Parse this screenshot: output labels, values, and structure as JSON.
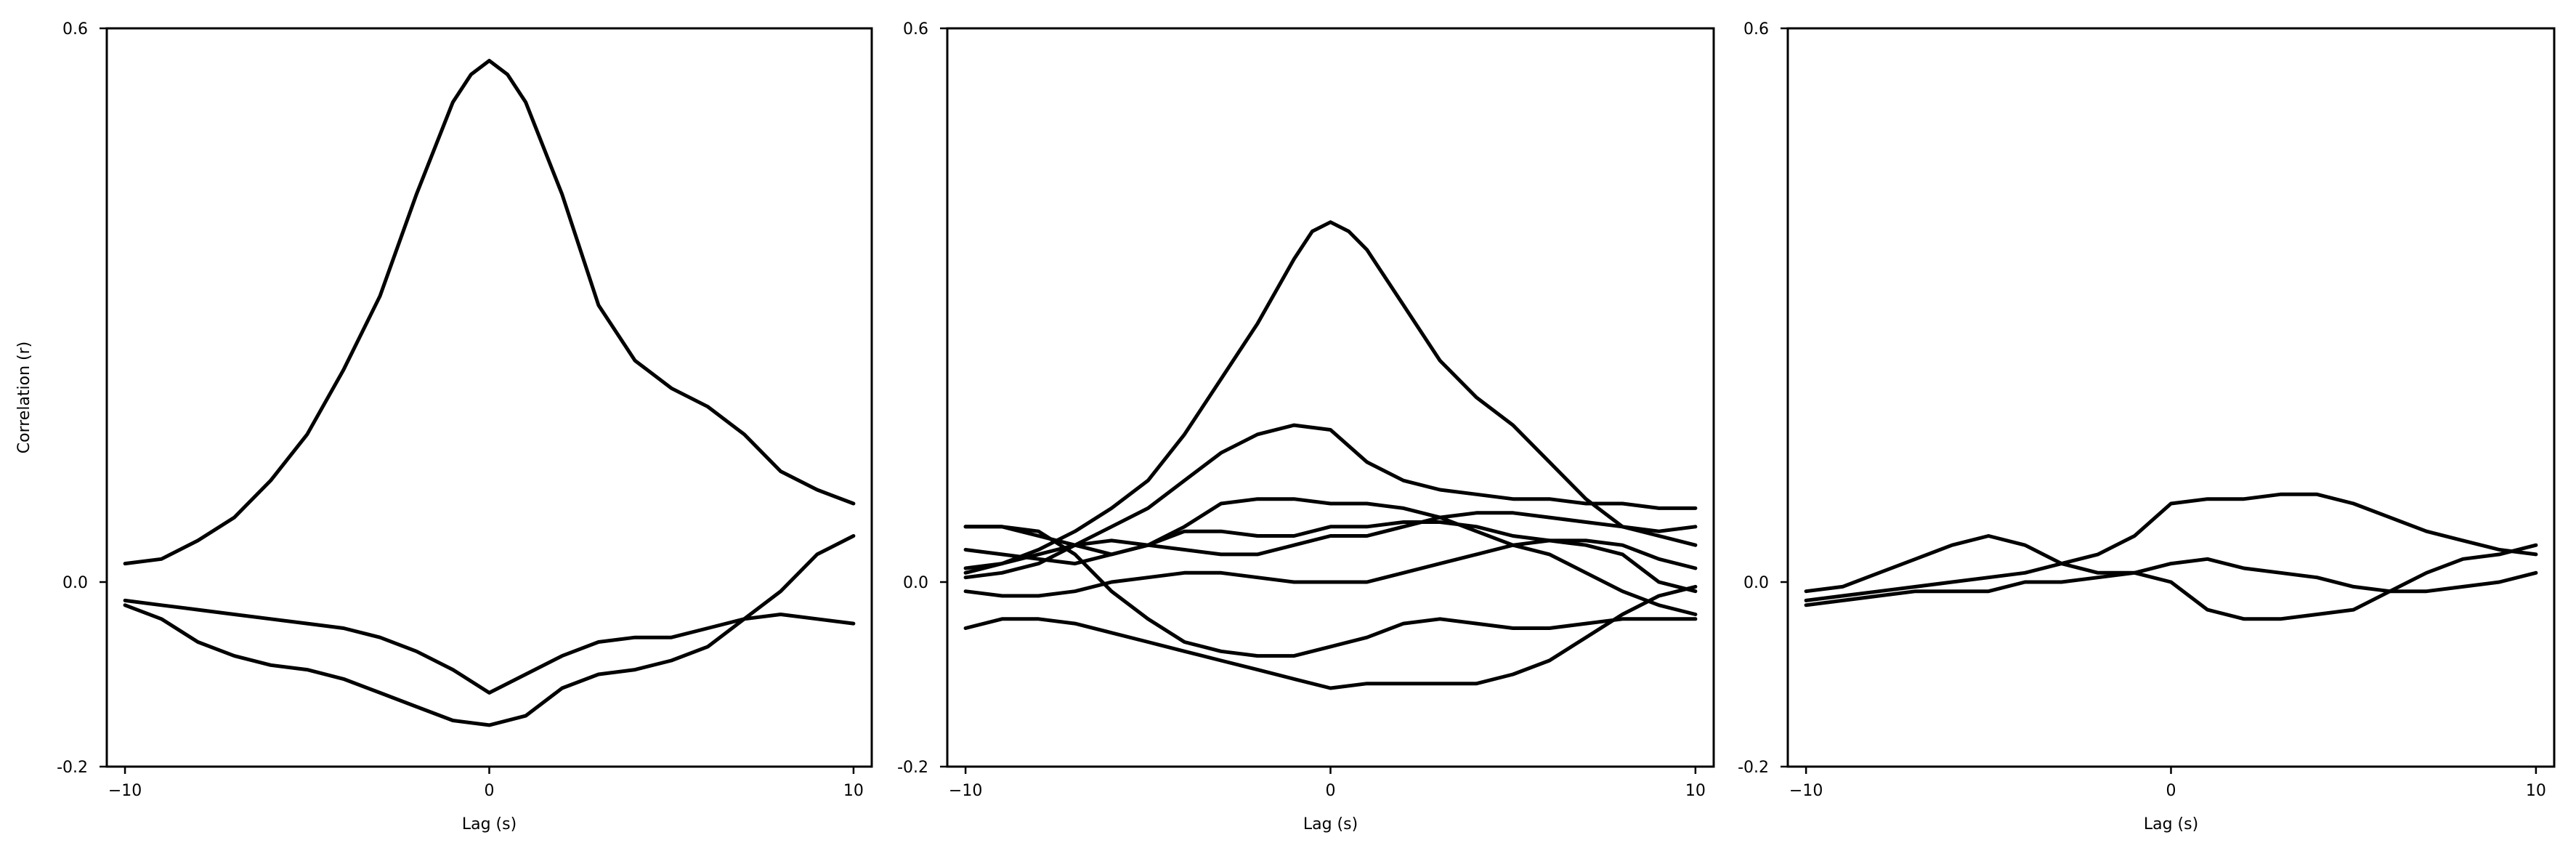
{
  "figure": {
    "line_color": "#000000",
    "background": "#ffffff"
  },
  "chart_data": [
    {
      "type": "line",
      "title": "",
      "xlabel": "Lag (s)",
      "ylabel": "Correlation (r)",
      "xlim": [
        -10.5,
        10.5
      ],
      "ylim": [
        -0.2,
        0.6
      ],
      "xticks": [
        -10,
        0,
        10
      ],
      "yticks": [
        -0.2,
        0.0,
        0.6
      ],
      "ytick_labels": [
        "-0.2",
        "0.0",
        "0.6"
      ],
      "grid": false,
      "series": [
        {
          "x": [
            -10,
            -9,
            -8,
            -7,
            -6,
            -5,
            -4,
            -3,
            -2,
            -1,
            -0.5,
            0,
            0.5,
            1,
            2,
            3,
            4,
            5,
            6,
            7,
            8,
            9,
            10
          ],
          "y": [
            0.02,
            0.025,
            0.045,
            0.07,
            0.11,
            0.16,
            0.23,
            0.31,
            0.42,
            0.52,
            0.55,
            0.565,
            0.55,
            0.52,
            0.42,
            0.3,
            0.24,
            0.21,
            0.19,
            0.16,
            0.12,
            0.1,
            0.085
          ]
        },
        {
          "x": [
            -10,
            -9,
            -8,
            -7,
            -6,
            -5,
            -4,
            -3,
            -2,
            -1,
            0,
            1,
            2,
            3,
            4,
            5,
            6,
            7,
            8,
            9,
            10
          ],
          "y": [
            -0.02,
            -0.025,
            -0.03,
            -0.035,
            -0.04,
            -0.045,
            -0.05,
            -0.06,
            -0.075,
            -0.095,
            -0.12,
            -0.1,
            -0.08,
            -0.065,
            -0.06,
            -0.06,
            -0.05,
            -0.04,
            -0.035,
            -0.04,
            -0.045
          ]
        },
        {
          "x": [
            -10,
            -9,
            -8,
            -7,
            -6,
            -5,
            -4,
            -3,
            -2,
            -1,
            0,
            1,
            2,
            3,
            4,
            5,
            6,
            7,
            8,
            9,
            10
          ],
          "y": [
            -0.025,
            -0.04,
            -0.065,
            -0.08,
            -0.09,
            -0.095,
            -0.105,
            -0.12,
            -0.135,
            -0.15,
            -0.155,
            -0.145,
            -0.115,
            -0.1,
            -0.095,
            -0.085,
            -0.07,
            -0.04,
            -0.01,
            0.03,
            0.05
          ]
        }
      ]
    },
    {
      "type": "line",
      "title": "",
      "xlabel": "Lag (s)",
      "ylabel": "",
      "xlim": [
        -10.5,
        10.5
      ],
      "ylim": [
        -0.2,
        0.6
      ],
      "xticks": [
        -10,
        0,
        10
      ],
      "yticks": [
        -0.2,
        0.0,
        0.6
      ],
      "ytick_labels": [
        "-0.2",
        "0.0",
        "0.6"
      ],
      "grid": false,
      "series": [
        {
          "x": [
            -10,
            -9,
            -8,
            -7,
            -6,
            -5,
            -4,
            -3,
            -2,
            -1,
            -0.5,
            0,
            0.5,
            1,
            2,
            3,
            4,
            5,
            6,
            7,
            8,
            9,
            10
          ],
          "y": [
            0.01,
            0.02,
            0.035,
            0.055,
            0.08,
            0.11,
            0.16,
            0.22,
            0.28,
            0.35,
            0.38,
            0.39,
            0.38,
            0.36,
            0.3,
            0.24,
            0.2,
            0.17,
            0.13,
            0.09,
            0.06,
            0.05,
            0.04
          ]
        },
        {
          "x": [
            -10,
            -9,
            -8,
            -7,
            -6,
            -5,
            -4,
            -3,
            -2,
            -1,
            0,
            1,
            2,
            3,
            4,
            5,
            6,
            7,
            8,
            9,
            10
          ],
          "y": [
            0.005,
            0.01,
            0.02,
            0.04,
            0.06,
            0.08,
            0.11,
            0.14,
            0.16,
            0.17,
            0.165,
            0.13,
            0.11,
            0.1,
            0.095,
            0.09,
            0.09,
            0.085,
            0.085,
            0.08,
            0.08
          ]
        },
        {
          "x": [
            -10,
            -9,
            -8,
            -7,
            -6,
            -5,
            -4,
            -3,
            -2,
            -1,
            0,
            1,
            2,
            3,
            4,
            5,
            6,
            7,
            8,
            9,
            10
          ],
          "y": [
            0.06,
            0.06,
            0.05,
            0.04,
            0.03,
            0.04,
            0.06,
            0.085,
            0.09,
            0.09,
            0.085,
            0.085,
            0.08,
            0.07,
            0.055,
            0.04,
            0.03,
            0.01,
            -0.01,
            -0.025,
            -0.035
          ]
        },
        {
          "x": [
            -10,
            -9,
            -8,
            -7,
            -6,
            -5,
            -4,
            -3,
            -2,
            -1,
            0,
            1,
            2,
            3,
            4,
            5,
            6,
            7,
            8,
            9,
            10
          ],
          "y": [
            0.035,
            0.03,
            0.025,
            0.02,
            0.03,
            0.04,
            0.055,
            0.055,
            0.05,
            0.05,
            0.06,
            0.06,
            0.065,
            0.065,
            0.06,
            0.05,
            0.045,
            0.045,
            0.04,
            0.025,
            0.015
          ]
        },
        {
          "x": [
            -10,
            -9,
            -8,
            -7,
            -6,
            -5,
            -4,
            -3,
            -2,
            -1,
            0,
            1,
            2,
            3,
            4,
            5,
            6,
            7,
            8,
            9,
            10
          ],
          "y": [
            0.015,
            0.02,
            0.03,
            0.04,
            0.045,
            0.04,
            0.035,
            0.03,
            0.03,
            0.04,
            0.05,
            0.05,
            0.06,
            0.07,
            0.075,
            0.075,
            0.07,
            0.065,
            0.06,
            0.055,
            0.06
          ]
        },
        {
          "x": [
            -10,
            -9,
            -8,
            -7,
            -6,
            -5,
            -4,
            -3,
            -2,
            -1,
            0,
            1,
            2,
            3,
            4,
            5,
            6,
            7,
            8,
            9,
            10
          ],
          "y": [
            0.06,
            0.06,
            0.055,
            0.03,
            -0.01,
            -0.04,
            -0.065,
            -0.075,
            -0.08,
            -0.08,
            -0.07,
            -0.06,
            -0.045,
            -0.04,
            -0.045,
            -0.05,
            -0.05,
            -0.045,
            -0.04,
            -0.04,
            -0.04
          ]
        },
        {
          "x": [
            -10,
            -9,
            -8,
            -7,
            -6,
            -5,
            -4,
            -3,
            -2,
            -1,
            0,
            1,
            2,
            3,
            4,
            5,
            6,
            7,
            8,
            9,
            10
          ],
          "y": [
            -0.01,
            -0.015,
            -0.015,
            -0.01,
            0.0,
            0.005,
            0.01,
            0.01,
            0.005,
            0.0,
            0.0,
            0.0,
            0.01,
            0.02,
            0.03,
            0.04,
            0.045,
            0.04,
            0.03,
            0.0,
            -0.01
          ]
        },
        {
          "x": [
            -10,
            -9,
            -8,
            -7,
            -6,
            -5,
            -4,
            -3,
            -2,
            -1,
            0,
            1,
            2,
            3,
            4,
            5,
            6,
            7,
            8,
            9,
            10
          ],
          "y": [
            -0.05,
            -0.04,
            -0.04,
            -0.045,
            -0.055,
            -0.065,
            -0.075,
            -0.085,
            -0.095,
            -0.105,
            -0.115,
            -0.11,
            -0.11,
            -0.11,
            -0.11,
            -0.1,
            -0.085,
            -0.06,
            -0.035,
            -0.015,
            -0.005
          ]
        }
      ]
    },
    {
      "type": "line",
      "title": "",
      "xlabel": "Lag (s)",
      "ylabel": "",
      "xlim": [
        -10.5,
        10.5
      ],
      "ylim": [
        -0.2,
        0.6
      ],
      "xticks": [
        -10,
        0,
        10
      ],
      "yticks": [
        -0.2,
        0.0,
        0.6
      ],
      "ytick_labels": [
        "-0.2",
        "0.0",
        "0.6"
      ],
      "grid": false,
      "series": [
        {
          "x": [
            -10,
            -9,
            -8,
            -7,
            -6,
            -5,
            -4,
            -3,
            -2,
            -1,
            0,
            1,
            2,
            3,
            4,
            5,
            6,
            7,
            8,
            9,
            10
          ],
          "y": [
            -0.02,
            -0.015,
            -0.01,
            -0.005,
            0.0,
            0.005,
            0.01,
            0.02,
            0.03,
            0.05,
            0.085,
            0.09,
            0.09,
            0.095,
            0.095,
            0.085,
            0.07,
            0.055,
            0.045,
            0.035,
            0.03
          ]
        },
        {
          "x": [
            -10,
            -9,
            -8,
            -7,
            -6,
            -5,
            -4,
            -3,
            -2,
            -1,
            0,
            1,
            2,
            3,
            4,
            5,
            6,
            7,
            8,
            9,
            10
          ],
          "y": [
            -0.01,
            -0.005,
            0.01,
            0.025,
            0.04,
            0.05,
            0.04,
            0.02,
            0.01,
            0.01,
            0.0,
            -0.03,
            -0.04,
            -0.04,
            -0.035,
            -0.03,
            -0.01,
            0.01,
            0.025,
            0.03,
            0.04
          ]
        },
        {
          "x": [
            -10,
            -9,
            -8,
            -7,
            -6,
            -5,
            -4,
            -3,
            -2,
            -1,
            0,
            1,
            2,
            3,
            4,
            5,
            6,
            7,
            8,
            9,
            10
          ],
          "y": [
            -0.025,
            -0.02,
            -0.015,
            -0.01,
            -0.01,
            -0.01,
            0.0,
            0.0,
            0.005,
            0.01,
            0.02,
            0.025,
            0.015,
            0.01,
            0.005,
            -0.005,
            -0.01,
            -0.01,
            -0.005,
            0.0,
            0.01
          ]
        }
      ]
    }
  ]
}
